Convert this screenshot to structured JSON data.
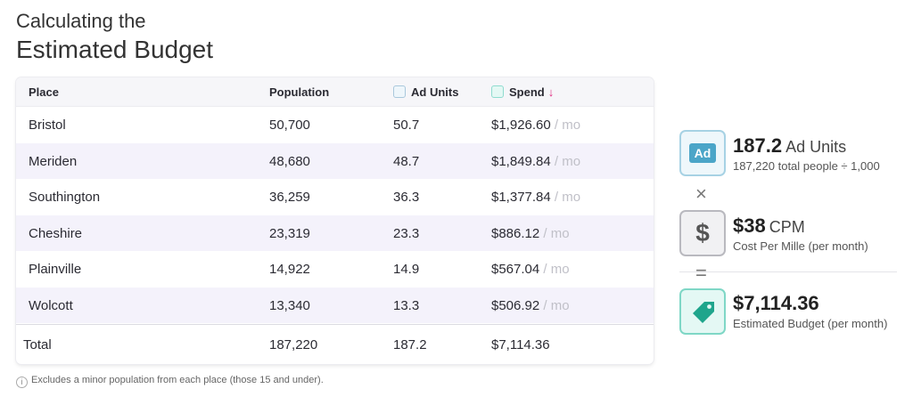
{
  "heading": {
    "line1": "Calculating the",
    "line2": "Estimated Budget"
  },
  "table": {
    "headers": {
      "place": "Place",
      "population": "Population",
      "ad_units": "Ad Units",
      "spend": "Spend",
      "spend_sort": "↓"
    },
    "per_month_suffix": "/ mo",
    "rows": [
      {
        "place": "Bristol",
        "population": "50,700",
        "ad_units": "50.7",
        "spend": "$1,926.60"
      },
      {
        "place": "Meriden",
        "population": "48,680",
        "ad_units": "48.7",
        "spend": "$1,849.84"
      },
      {
        "place": "Southington",
        "population": "36,259",
        "ad_units": "36.3",
        "spend": "$1,377.84"
      },
      {
        "place": "Cheshire",
        "population": "23,319",
        "ad_units": "23.3",
        "spend": "$886.12"
      },
      {
        "place": "Plainville",
        "population": "14,922",
        "ad_units": "14.9",
        "spend": "$567.04"
      },
      {
        "place": "Wolcott",
        "population": "13,340",
        "ad_units": "13.3",
        "spend": "$506.92"
      }
    ],
    "total": {
      "label": "Total",
      "population": "187,220",
      "ad_units": "187.2",
      "spend": "$7,114.36"
    }
  },
  "note": {
    "icon": "i",
    "text": "Excludes a minor population from each place (those 15 and under)."
  },
  "summary": {
    "ad_units": {
      "icon_text": "Ad",
      "value": "187.2",
      "unit": "Ad Units",
      "sub": "187,220 total people ÷ 1,000"
    },
    "times_symbol": "×",
    "cpm": {
      "icon_text": "$",
      "value": "$38",
      "unit": "CPM",
      "sub": "Cost Per Mille (per month)"
    },
    "equals_symbol": "=",
    "budget": {
      "value": "$7,114.36",
      "sub": "Estimated Budget (per month)"
    }
  },
  "colors": {
    "accent_pink": "#e0297f",
    "ad_blue": "#4ba5c8",
    "teal": "#1fa58c",
    "alt_row": "#f4f2fb"
  }
}
